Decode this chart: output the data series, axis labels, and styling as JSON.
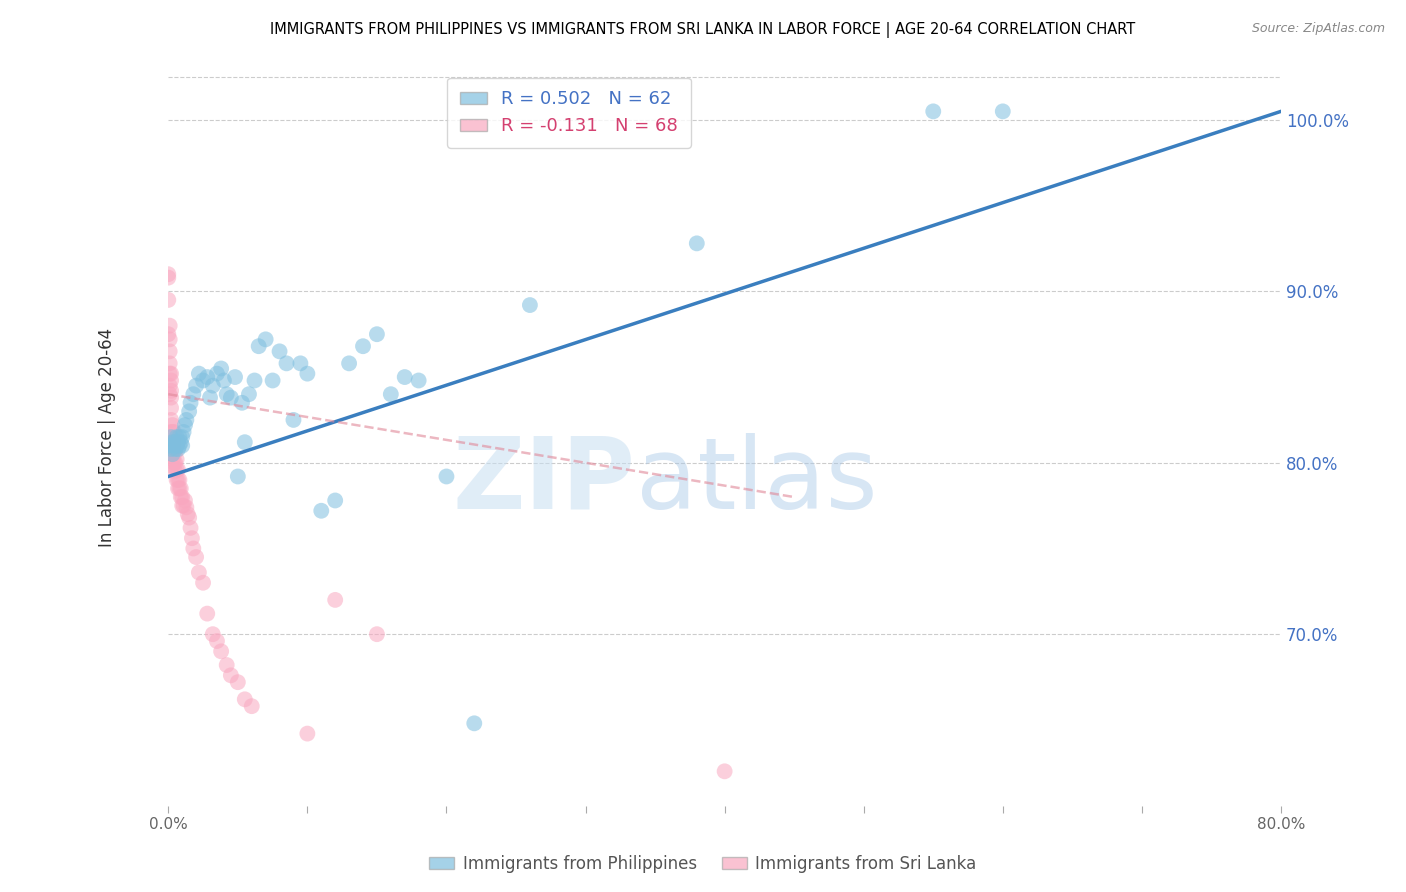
{
  "title": "IMMIGRANTS FROM PHILIPPINES VS IMMIGRANTS FROM SRI LANKA IN LABOR FORCE | AGE 20-64 CORRELATION CHART",
  "source": "Source: ZipAtlas.com",
  "ylabel": "In Labor Force | Age 20-64",
  "xmin": 0.0,
  "xmax": 0.8,
  "ymin": 0.6,
  "ymax": 1.03,
  "ytick_positions": [
    0.7,
    0.8,
    0.9,
    1.0
  ],
  "ytick_labels": [
    "70.0%",
    "80.0%",
    "90.0%",
    "100.0%"
  ],
  "xtick_positions": [
    0.0,
    0.1,
    0.2,
    0.3,
    0.4,
    0.5,
    0.6,
    0.7,
    0.8
  ],
  "xtick_labels": [
    "0.0%",
    "",
    "",
    "",
    "",
    "",
    "",
    "",
    "80.0%"
  ],
  "legend_r1": "R = 0.502",
  "legend_n1": "N = 62",
  "legend_r2": "R = -0.131",
  "legend_n2": "N = 68",
  "blue_color": "#7fbfdf",
  "blue_line_color": "#3a7ebf",
  "pink_color": "#f9a8c0",
  "pink_line_color": "#e08898",
  "watermark_zip": "ZIP",
  "watermark_atlas": "atlas",
  "axis_label_color": "#4472c4",
  "grid_color": "#cccccc",
  "philippines_x": [
    0.001,
    0.002,
    0.002,
    0.003,
    0.003,
    0.004,
    0.005,
    0.005,
    0.006,
    0.006,
    0.007,
    0.007,
    0.008,
    0.008,
    0.009,
    0.01,
    0.01,
    0.011,
    0.012,
    0.013,
    0.015,
    0.016,
    0.018,
    0.02,
    0.022,
    0.025,
    0.028,
    0.03,
    0.032,
    0.035,
    0.038,
    0.04,
    0.042,
    0.045,
    0.048,
    0.05,
    0.053,
    0.055,
    0.058,
    0.062,
    0.065,
    0.07,
    0.075,
    0.08,
    0.085,
    0.09,
    0.095,
    0.1,
    0.11,
    0.12,
    0.13,
    0.14,
    0.15,
    0.16,
    0.17,
    0.18,
    0.2,
    0.22,
    0.26,
    0.38,
    0.55,
    0.6
  ],
  "philippines_y": [
    0.81,
    0.815,
    0.808,
    0.812,
    0.805,
    0.81,
    0.808,
    0.812,
    0.81,
    0.815,
    0.812,
    0.808,
    0.81,
    0.815,
    0.812,
    0.81,
    0.815,
    0.818,
    0.822,
    0.825,
    0.83,
    0.835,
    0.84,
    0.845,
    0.852,
    0.848,
    0.85,
    0.838,
    0.845,
    0.852,
    0.855,
    0.848,
    0.84,
    0.838,
    0.85,
    0.792,
    0.835,
    0.812,
    0.84,
    0.848,
    0.868,
    0.872,
    0.848,
    0.865,
    0.858,
    0.825,
    0.858,
    0.852,
    0.772,
    0.778,
    0.858,
    0.868,
    0.875,
    0.84,
    0.85,
    0.848,
    0.792,
    0.648,
    0.892,
    0.928,
    1.005,
    1.005
  ],
  "srilanka_x": [
    0.0,
    0.0,
    0.0,
    0.0,
    0.001,
    0.001,
    0.001,
    0.001,
    0.001,
    0.001,
    0.001,
    0.002,
    0.002,
    0.002,
    0.002,
    0.002,
    0.002,
    0.002,
    0.003,
    0.003,
    0.003,
    0.003,
    0.003,
    0.003,
    0.004,
    0.004,
    0.004,
    0.004,
    0.005,
    0.005,
    0.005,
    0.005,
    0.006,
    0.006,
    0.006,
    0.007,
    0.007,
    0.007,
    0.008,
    0.008,
    0.009,
    0.009,
    0.01,
    0.01,
    0.011,
    0.012,
    0.013,
    0.014,
    0.015,
    0.016,
    0.017,
    0.018,
    0.02,
    0.022,
    0.025,
    0.028,
    0.032,
    0.035,
    0.038,
    0.042,
    0.045,
    0.05,
    0.055,
    0.06,
    0.1,
    0.12,
    0.15,
    0.4
  ],
  "srilanka_y": [
    0.91,
    0.908,
    0.895,
    0.875,
    0.88,
    0.872,
    0.865,
    0.858,
    0.852,
    0.845,
    0.84,
    0.852,
    0.848,
    0.842,
    0.838,
    0.832,
    0.825,
    0.818,
    0.822,
    0.818,
    0.812,
    0.808,
    0.802,
    0.798,
    0.818,
    0.812,
    0.806,
    0.8,
    0.812,
    0.806,
    0.8,
    0.795,
    0.802,
    0.796,
    0.79,
    0.796,
    0.79,
    0.785,
    0.79,
    0.785,
    0.785,
    0.78,
    0.78,
    0.775,
    0.775,
    0.778,
    0.774,
    0.77,
    0.768,
    0.762,
    0.756,
    0.75,
    0.745,
    0.736,
    0.73,
    0.712,
    0.7,
    0.696,
    0.69,
    0.682,
    0.676,
    0.672,
    0.662,
    0.658,
    0.642,
    0.72,
    0.7,
    0.62
  ],
  "blue_regline_x0": 0.0,
  "blue_regline_y0": 0.792,
  "blue_regline_x1": 0.8,
  "blue_regline_y1": 1.005,
  "pink_regline_x0": 0.0,
  "pink_regline_y0": 0.84,
  "pink_regline_x1": 0.45,
  "pink_regline_y1": 0.78
}
